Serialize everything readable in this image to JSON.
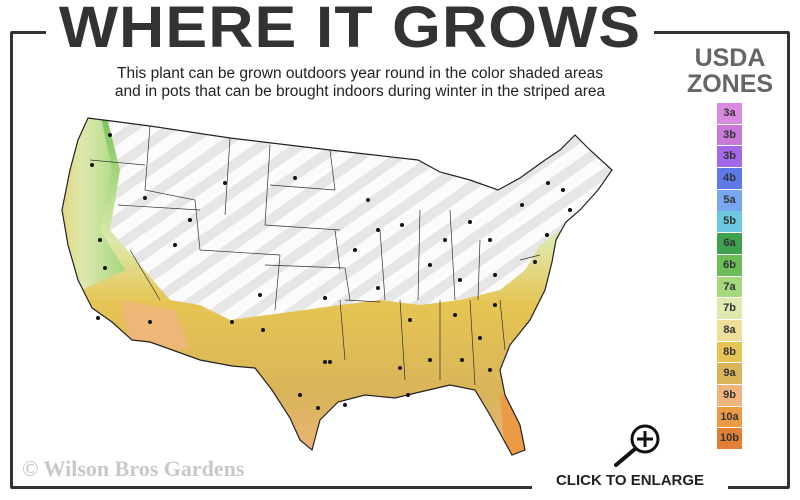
{
  "header": {
    "title": "WHERE IT GROWS",
    "subtitle_line1": "This plant can be grown outdoors year round in the color shaded areas",
    "subtitle_line2": "and in pots that can be brought indoors during winter in the striped area"
  },
  "legend": {
    "title_line1": "USDA",
    "title_line2": "ZONES",
    "zones": [
      {
        "label": "3a",
        "color": "#d98be0"
      },
      {
        "label": "3b",
        "color": "#c87ad6"
      },
      {
        "label": "3b",
        "color": "#a368e8"
      },
      {
        "label": "4b",
        "color": "#5d7ae8"
      },
      {
        "label": "5a",
        "color": "#78a7f0"
      },
      {
        "label": "5b",
        "color": "#6cc7e0"
      },
      {
        "label": "6a",
        "color": "#3fa04e"
      },
      {
        "label": "6b",
        "color": "#6cbd5a"
      },
      {
        "label": "7a",
        "color": "#a6d67e"
      },
      {
        "label": "7b",
        "color": "#dde9ad"
      },
      {
        "label": "8a",
        "color": "#ecdf9c"
      },
      {
        "label": "8b",
        "color": "#e6c453"
      },
      {
        "label": "9a",
        "color": "#d9b45a"
      },
      {
        "label": "9b",
        "color": "#f1b47f"
      },
      {
        "label": "10a",
        "color": "#eb9a45"
      },
      {
        "label": "10b",
        "color": "#e27f35"
      }
    ]
  },
  "map": {
    "striped_color": "#e8e8e8",
    "border_color": "#222"
  },
  "footer": {
    "copyright": "© Wilson Bros Gardens",
    "enlarge_label": "CLICK TO ENLARGE"
  }
}
